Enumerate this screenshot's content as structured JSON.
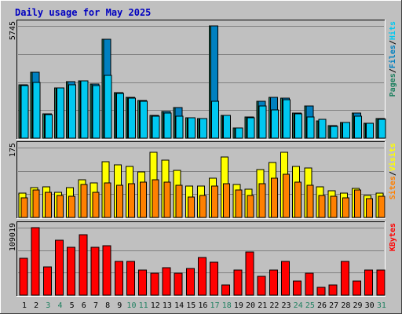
{
  "title": "Daily usage for May 2025",
  "colors": {
    "background": "#c0c0c0",
    "title": "#0000c0",
    "grid": "#808080",
    "hits": "#00c8f0",
    "files": "#0080c0",
    "pages": "#1f8060",
    "sites": "#ff8000",
    "visits": "#ffff00",
    "kbytes": "#ff0000"
  },
  "chart_data": {
    "type": "bar",
    "categories": [
      "1",
      "2",
      "3",
      "4",
      "5",
      "6",
      "7",
      "8",
      "9",
      "10",
      "11",
      "12",
      "13",
      "14",
      "15",
      "16",
      "17",
      "18",
      "19",
      "20",
      "21",
      "22",
      "23",
      "24",
      "25",
      "26",
      "27",
      "28",
      "29",
      "30",
      "31"
    ],
    "weekend_days": [
      "3",
      "4",
      "10",
      "11",
      "17",
      "18",
      "24",
      "25",
      "31"
    ],
    "panels": [
      {
        "key": "top",
        "ymax": 5745,
        "ymax_label": "5745",
        "legend": [
          "Pages",
          "Files",
          "Hits"
        ],
        "series": [
          {
            "name": "Pages",
            "values": [
              2720,
              3370,
              1250,
              2570,
              2880,
              2950,
              2770,
              5080,
              2330,
              2070,
              1940,
              1150,
              1350,
              1560,
              1050,
              1010,
              5745,
              1150,
              530,
              1070,
              1880,
              2090,
              2050,
              1290,
              1660,
              890,
              650,
              810,
              1300,
              780,
              1010
            ]
          },
          {
            "name": "Files",
            "values": [
              2720,
              3370,
              1250,
              2570,
              2880,
              2950,
              2770,
              5080,
              2330,
              2070,
              1940,
              1150,
              1350,
              1560,
              1050,
              1010,
              5745,
              1150,
              530,
              1070,
              1880,
              2090,
              2050,
              1290,
              1660,
              890,
              650,
              810,
              1300,
              780,
              1010
            ]
          },
          {
            "name": "Hits",
            "values": [
              2680,
              2860,
              1200,
              2560,
              2720,
              2940,
              2700,
              3200,
              2300,
              2030,
              1880,
              1140,
              1290,
              1110,
              1050,
              1010,
              1880,
              1150,
              540,
              1050,
              1650,
              1440,
              1960,
              1260,
              1090,
              960,
              600,
              800,
              1130,
              770,
              980
            ]
          }
        ]
      },
      {
        "key": "middle",
        "ymax": 175,
        "ymax_label": "175",
        "legend": [
          "Sites",
          "Visits"
        ],
        "series": [
          {
            "name": "Visits",
            "values": [
              60,
              75,
              77,
              63,
              75,
              95,
              86,
              140,
              131,
              128,
              115,
              164,
              143,
              118,
              79,
              78,
              99,
              151,
              83,
              70,
              120,
              137,
              164,
              127,
              123,
              76,
              66,
              60,
              73,
              55,
              60
            ]
          },
          {
            "name": "Sites",
            "values": [
              50,
              68,
              63,
              55,
              54,
              82,
              62,
              87,
              80,
              84,
              89,
              94,
              88,
              80,
              51,
              56,
              78,
              85,
              68,
              55,
              85,
              98,
              108,
              88,
              80,
              55,
              53,
              49,
              68,
              48,
              54
            ]
          }
        ]
      },
      {
        "key": "bottom",
        "ymax": 109019,
        "ymax_label": "109019",
        "legend": [
          "KBytes"
        ],
        "series": [
          {
            "name": "KBytes",
            "values": [
              60000,
              109019,
              46000,
              89000,
              77000,
              97000,
              77000,
              80000,
              55000,
              55000,
              40000,
              35000,
              45000,
              35000,
              43000,
              61000,
              53000,
              17000,
              40000,
              70000,
              31000,
              40000,
              55000,
              23000,
              35000,
              13000,
              16000,
              54000,
              23000,
              40000,
              40000
            ]
          }
        ]
      }
    ]
  }
}
